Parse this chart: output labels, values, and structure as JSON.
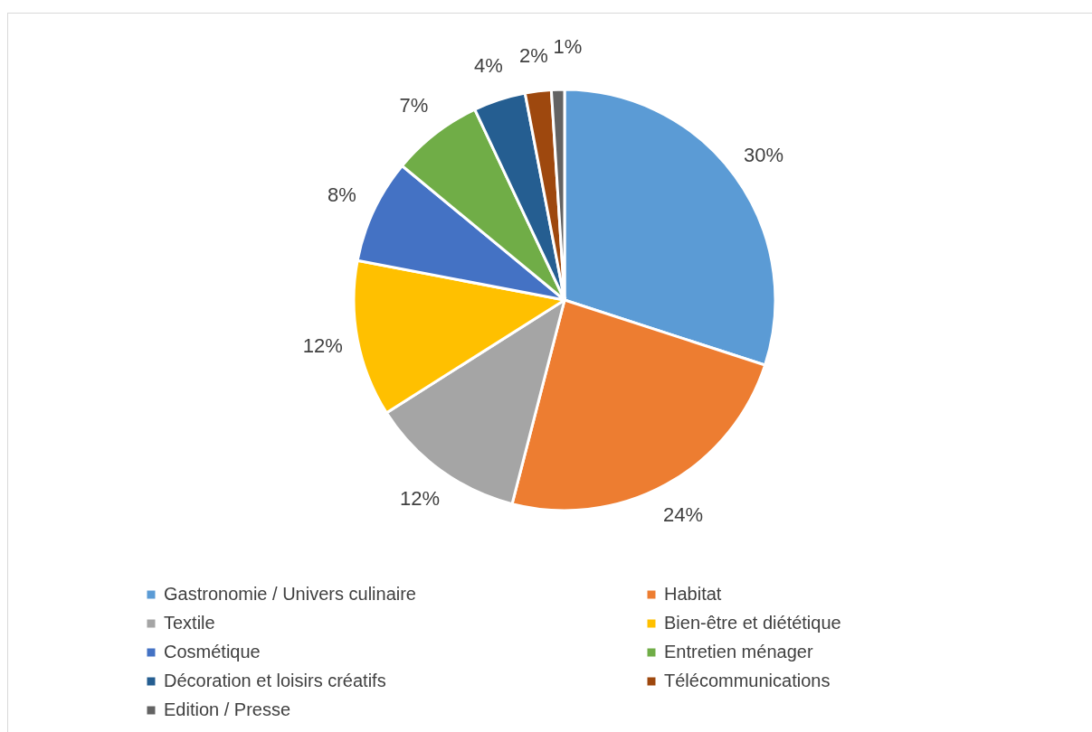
{
  "chart_data": {
    "type": "pie",
    "categories": [
      "Gastronomie / Univers culinaire",
      "Habitat",
      "Textile",
      "Bien-être et diététique",
      "Cosmétique",
      "Entretien ménager",
      "Décoration et loisirs créatifs",
      "Télécommunications",
      "Edition / Presse"
    ],
    "values": [
      30,
      24,
      12,
      12,
      8,
      7,
      4,
      2,
      1
    ],
    "colors": [
      "#5b9bd5",
      "#ed7d31",
      "#a5a5a5",
      "#ffc000",
      "#4472c4",
      "#70ad47",
      "#255e91",
      "#9e480e",
      "#636363"
    ],
    "value_labels": [
      "30%",
      "24%",
      "12%",
      "12%",
      "8%",
      "7%",
      "4%",
      "2%",
      "1%"
    ],
    "legend": "bottom"
  }
}
